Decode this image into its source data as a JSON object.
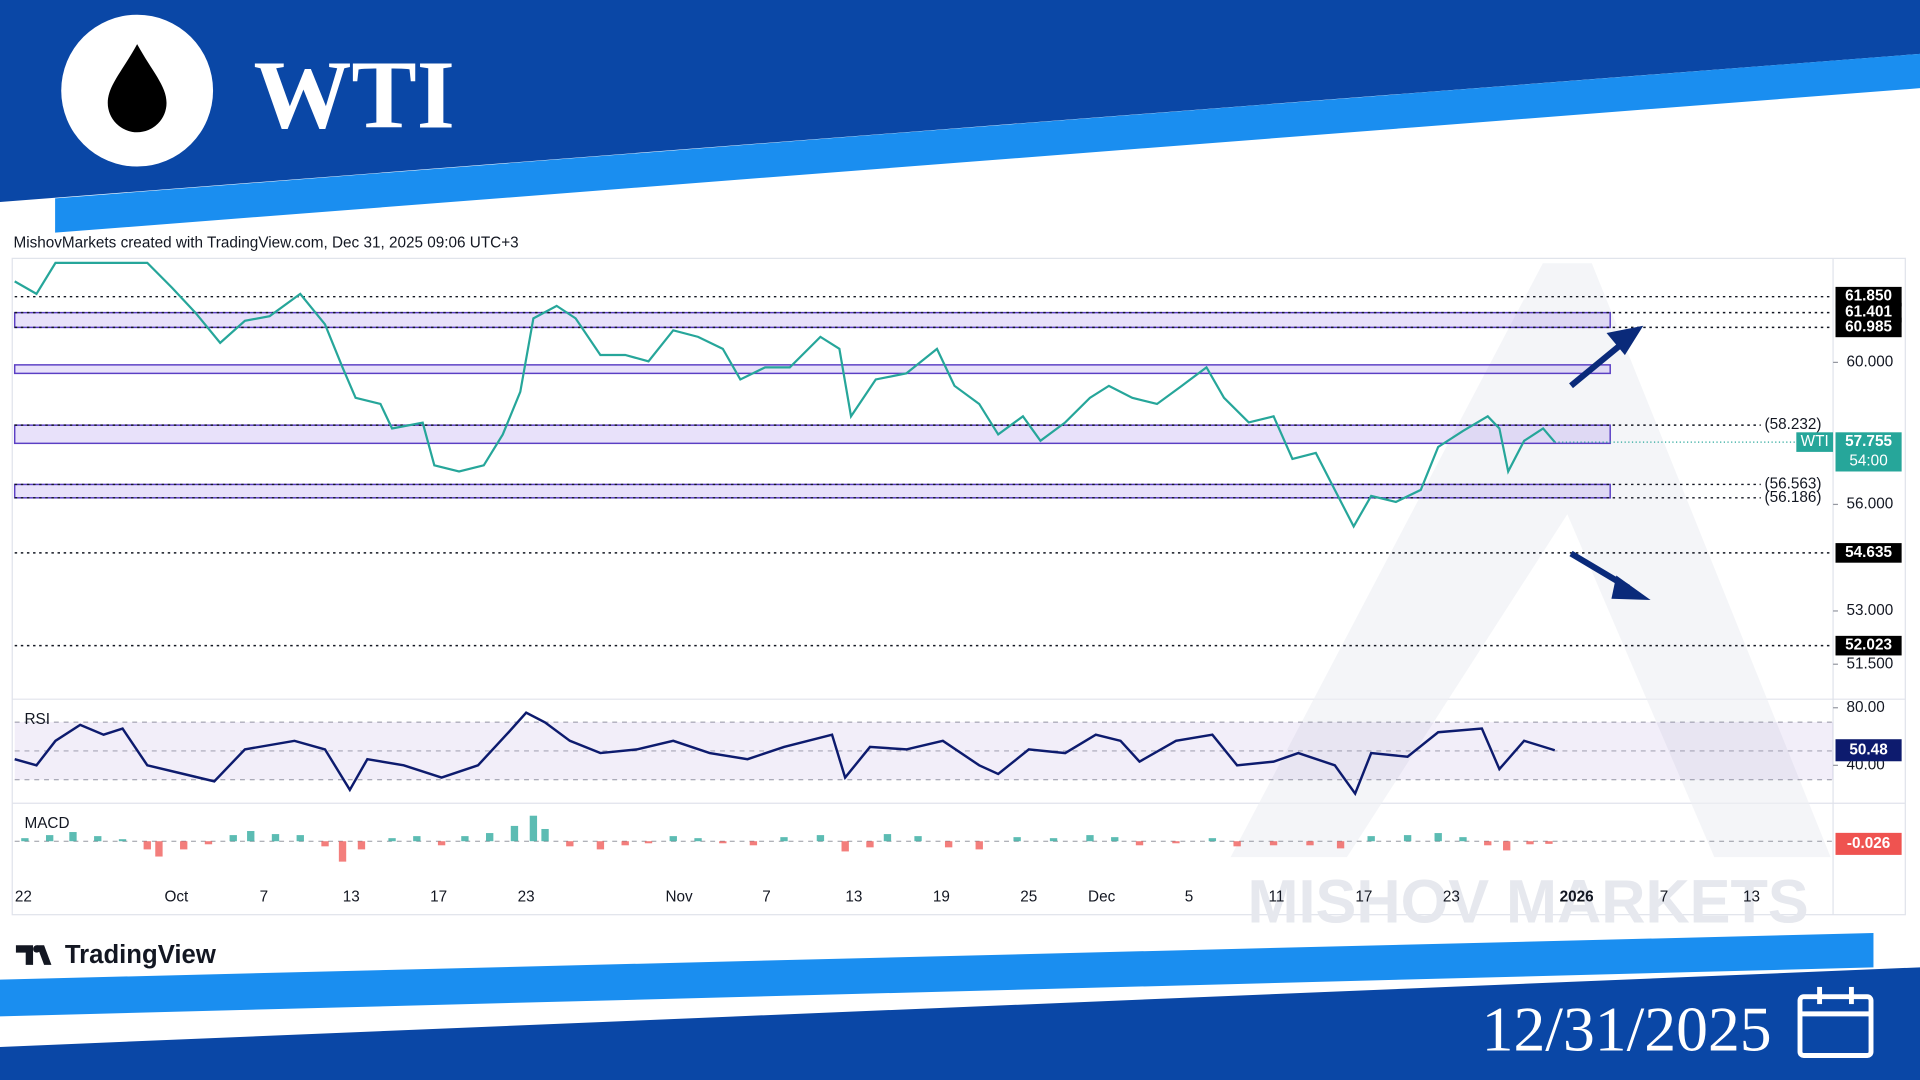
{
  "header": {
    "title": "WTI",
    "attribution": "MishovMarkets created with TradingView.com, Dec 31, 2025 09:06 UTC+3"
  },
  "footer": {
    "brand": "TradingView",
    "date": "12/31/2025"
  },
  "watermark": "MISHOV MARKETS",
  "chart_data": [
    {
      "type": "line",
      "name": "WTI",
      "color": "#26a69a",
      "x": [
        -0.6,
        0.9,
        2.2,
        8.5,
        10.2,
        11.8,
        13.5,
        15.2,
        16.9,
        19.0,
        20.7,
        21.9,
        22.8,
        24.5,
        25.3,
        27.4,
        28.2,
        29.9,
        31.6,
        32.9,
        34.1,
        35.0,
        36.6,
        37.9,
        39.6,
        41.3,
        42.9,
        44.6,
        46.3,
        48.0,
        49.2,
        50.9,
        52.6,
        54.7,
        56.0,
        56.8,
        58.5,
        60.6,
        62.7,
        63.9,
        65.6,
        66.9,
        68.6,
        69.8,
        71.5,
        73.2,
        74.5,
        76.1,
        77.8,
        79.5,
        81.2,
        82.4,
        84.1,
        85.8,
        87.1,
        88.7,
        90.0,
        91.3,
        92.5,
        94.2,
        95.9,
        97.1,
        98.8,
        100.5,
        101.3,
        101.9,
        103.0,
        104.3,
        105.1
      ],
      "values": [
        62.28,
        61.93,
        62.8,
        62.8,
        62.1,
        61.4,
        60.55,
        61.17,
        61.3,
        61.93,
        61.07,
        59.86,
        59.0,
        58.83,
        58.14,
        58.3,
        57.1,
        56.93,
        57.1,
        57.97,
        59.17,
        61.24,
        61.59,
        61.24,
        60.21,
        60.21,
        60.03,
        60.9,
        60.72,
        60.38,
        59.52,
        59.86,
        59.86,
        60.72,
        60.38,
        58.48,
        59.52,
        59.69,
        60.38,
        59.34,
        58.83,
        57.97,
        58.48,
        57.79,
        58.31,
        59.0,
        59.34,
        59.0,
        58.83,
        59.34,
        59.86,
        59.0,
        58.31,
        58.48,
        57.28,
        57.45,
        56.41,
        55.38,
        56.24,
        56.07,
        56.41,
        57.62,
        58.07,
        58.48,
        58.14,
        56.93,
        57.79,
        58.14,
        57.755
      ],
      "countdown": "54:00",
      "xlim": [
        -0.6,
        124.2
      ],
      "xticks": [
        {
          "value": 0,
          "label": "22"
        },
        {
          "value": 10.5,
          "label": "Oct"
        },
        {
          "value": 16.5,
          "label": "7"
        },
        {
          "value": 22.5,
          "label": "13"
        },
        {
          "value": 28.5,
          "label": "17"
        },
        {
          "value": 34.5,
          "label": "23"
        },
        {
          "value": 45,
          "label": "Nov"
        },
        {
          "value": 51,
          "label": "7"
        },
        {
          "value": 57,
          "label": "13"
        },
        {
          "value": 63,
          "label": "19"
        },
        {
          "value": 69,
          "label": "25"
        },
        {
          "value": 74,
          "label": "Dec"
        },
        {
          "value": 80,
          "label": "5"
        },
        {
          "value": 86,
          "label": "11"
        },
        {
          "value": 92,
          "label": "17"
        },
        {
          "value": 98,
          "label": "23"
        },
        {
          "value": 106.6,
          "label": "2026"
        },
        {
          "value": 112.6,
          "label": "7"
        },
        {
          "value": 118.6,
          "label": "13"
        }
      ],
      "ylim": [
        50.55,
        62.86
      ],
      "yticks": [
        {
          "value": 51.5,
          "label": "51.500"
        },
        {
          "value": 53,
          "label": "53.000"
        },
        {
          "value": 56,
          "label": "56.000"
        },
        {
          "value": 60,
          "label": "60.000"
        }
      ],
      "zones": [
        [
          56.186,
          56.563
        ],
        [
          57.72,
          58.232
        ],
        [
          59.69,
          59.93
        ],
        [
          60.985,
          61.401
        ]
      ],
      "levels": [
        {
          "value": 61.85,
          "label": "61.850"
        },
        {
          "value": 61.401,
          "label": "61.401"
        },
        {
          "value": 60.985,
          "label": "60.985"
        },
        {
          "value": 54.635,
          "label": "54.635"
        },
        {
          "value": 52.023,
          "label": "52.023"
        }
      ],
      "marked_levels": [
        {
          "value": 58.232,
          "label": "(58.232)"
        },
        {
          "value": 56.563,
          "label": "(56.563)"
        },
        {
          "value": 56.186,
          "label": "(56.186)"
        }
      ],
      "grid": false
    },
    {
      "type": "line",
      "title": "RSI",
      "color": "#0d1b6e",
      "x": [
        -0.6,
        0.9,
        2.2,
        3.9,
        5.5,
        6.8,
        8.5,
        11.0,
        13.1,
        15.2,
        18.6,
        20.7,
        22.4,
        23.6,
        26.1,
        28.7,
        31.2,
        33.3,
        34.5,
        35.8,
        37.5,
        39.6,
        42.1,
        44.6,
        47.1,
        49.7,
        52.2,
        55.5,
        56.4,
        58.1,
        60.6,
        63.1,
        65.6,
        66.9,
        69.0,
        71.5,
        73.6,
        75.3,
        76.6,
        79.1,
        81.6,
        83.3,
        85.8,
        87.5,
        90.0,
        91.4,
        92.5,
        95.0,
        97.1,
        100.1,
        101.3,
        103.0,
        105.1
      ],
      "values": [
        44.3,
        40.0,
        57.0,
        68.1,
        61.3,
        65.5,
        40.0,
        34.0,
        28.9,
        51.1,
        57.0,
        51.1,
        23.0,
        44.3,
        40.0,
        31.5,
        40.0,
        63.0,
        76.6,
        69.8,
        57.0,
        48.5,
        51.1,
        57.0,
        48.5,
        44.3,
        52.8,
        61.3,
        31.5,
        52.8,
        51.1,
        57.0,
        40.0,
        34.0,
        51.1,
        48.5,
        61.3,
        57.0,
        42.6,
        57.0,
        61.3,
        40.0,
        42.6,
        48.5,
        40.0,
        20.4,
        48.5,
        46.0,
        63.0,
        65.5,
        37.4,
        57.0,
        50.48
      ],
      "ylim": [
        14.5,
        85.1
      ],
      "yticks": [
        {
          "value": 40,
          "label": "40.00"
        },
        {
          "value": 80,
          "label": "80.00"
        }
      ],
      "hlines": [
        30,
        50,
        70
      ],
      "grid": false
    },
    {
      "type": "bar",
      "title": "MACD",
      "up_color": "#26a69a",
      "down_color": "#ef5350",
      "x": [
        0.1,
        1.8,
        3.4,
        5.1,
        6.8,
        8.5,
        9.3,
        11.0,
        12.7,
        14.4,
        15.6,
        17.3,
        19.0,
        20.7,
        21.9,
        23.2,
        25.3,
        27.0,
        28.7,
        30.3,
        32.0,
        33.7,
        35.0,
        35.8,
        37.5,
        39.6,
        41.3,
        42.9,
        44.6,
        46.3,
        48.0,
        50.1,
        52.2,
        54.7,
        56.4,
        58.1,
        59.3,
        61.4,
        63.5,
        65.6,
        68.2,
        70.7,
        73.2,
        74.9,
        76.6,
        79.1,
        81.6,
        83.3,
        85.8,
        88.3,
        90.4,
        92.5,
        95.0,
        97.1,
        98.8,
        100.5,
        101.8,
        103.4,
        104.7
      ],
      "values": [
        0.03,
        0.06,
        0.09,
        0.05,
        0.02,
        -0.08,
        -0.15,
        -0.08,
        -0.03,
        0.06,
        0.1,
        0.07,
        0.06,
        -0.05,
        -0.2,
        -0.08,
        0.03,
        0.05,
        -0.04,
        0.05,
        0.08,
        0.15,
        0.25,
        0.12,
        -0.05,
        -0.08,
        -0.04,
        -0.02,
        0.05,
        0.03,
        -0.02,
        -0.04,
        0.04,
        0.06,
        -0.1,
        -0.06,
        0.07,
        0.05,
        -0.06,
        -0.08,
        0.04,
        0.03,
        0.06,
        0.04,
        -0.04,
        -0.02,
        0.03,
        -0.05,
        -0.04,
        -0.04,
        -0.07,
        0.05,
        0.06,
        0.08,
        0.04,
        -0.04,
        -0.09,
        -0.03,
        -0.026
      ],
      "ylim": [
        -0.36,
        0.36
      ],
      "hlines": [
        0
      ],
      "grid": false
    }
  ]
}
